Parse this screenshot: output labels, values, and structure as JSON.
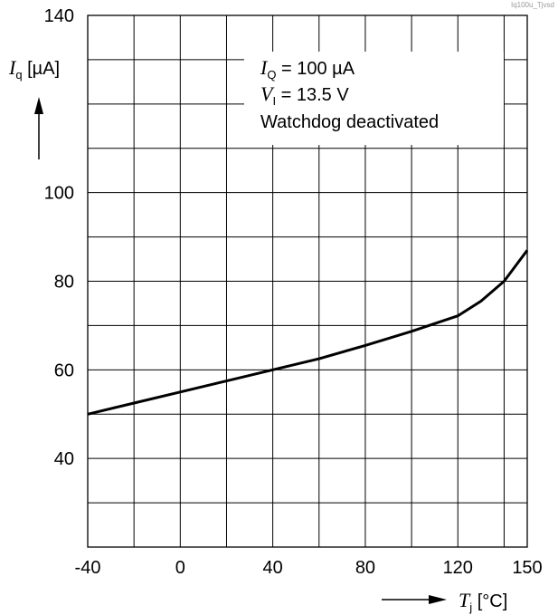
{
  "figure_code": "Iq100u_Tjvsd",
  "chart_data": {
    "type": "line",
    "x_axis": {
      "symbol": "T",
      "subscript": "j",
      "unit": "[°C]",
      "range": [
        -40,
        150
      ],
      "ticks": [
        -40,
        0,
        40,
        80,
        120,
        150
      ],
      "grid_step": 20
    },
    "y_axis": {
      "symbol": "I",
      "subscript": "q",
      "unit": "[µA]",
      "range": [
        20,
        140
      ],
      "ticks": [
        40,
        60,
        80,
        100,
        140
      ],
      "grid_step": 10
    },
    "grid": true,
    "annotation": [
      {
        "symbol": "I",
        "subscript": "Q",
        "text": " = 100 µA"
      },
      {
        "symbol": "V",
        "subscript": "I",
        "text": " = 13.5 V"
      },
      {
        "text": "Watchdog deactivated"
      }
    ],
    "series": [
      {
        "color": "#000000",
        "x": [
          -40,
          -20,
          0,
          20,
          40,
          60,
          80,
          100,
          120,
          130,
          140,
          145,
          150
        ],
        "y": [
          50,
          52.5,
          55,
          57.5,
          60,
          62.5,
          65.5,
          68.7,
          72.2,
          75.5,
          80,
          83.5,
          87
        ]
      }
    ]
  }
}
